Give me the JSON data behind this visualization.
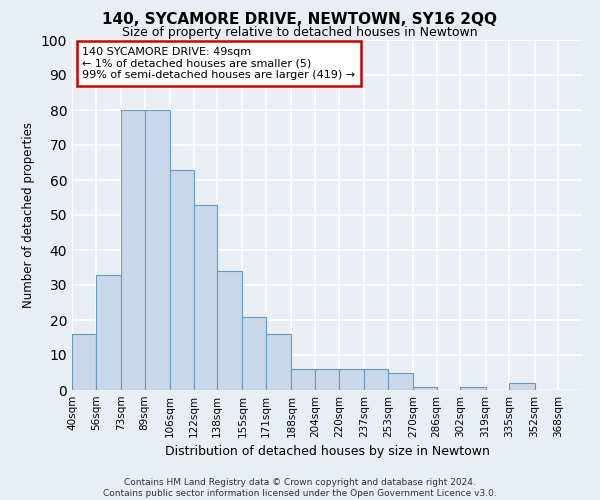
{
  "title": "140, SYCAMORE DRIVE, NEWTOWN, SY16 2QQ",
  "subtitle": "Size of property relative to detached houses in Newtown",
  "xlabel": "Distribution of detached houses by size in Newtown",
  "ylabel": "Number of detached properties",
  "bin_labels": [
    "40sqm",
    "56sqm",
    "73sqm",
    "89sqm",
    "106sqm",
    "122sqm",
    "138sqm",
    "155sqm",
    "171sqm",
    "188sqm",
    "204sqm",
    "220sqm",
    "237sqm",
    "253sqm",
    "270sqm",
    "286sqm",
    "302sqm",
    "319sqm",
    "335sqm",
    "352sqm",
    "368sqm"
  ],
  "bin_edges": [
    40,
    56,
    73,
    89,
    106,
    122,
    138,
    155,
    171,
    188,
    204,
    220,
    237,
    253,
    270,
    286,
    302,
    319,
    335,
    352,
    368,
    384
  ],
  "bar_heights": [
    16,
    33,
    80,
    80,
    63,
    53,
    34,
    21,
    16,
    6,
    6,
    6,
    6,
    5,
    1,
    0,
    1,
    0,
    2,
    0,
    0
  ],
  "bar_color": "#c8d8ea",
  "bar_edge_color": "#6699bb",
  "annotation_text": "140 SYCAMORE DRIVE: 49sqm\n← 1% of detached houses are smaller (5)\n99% of semi-detached houses are larger (419) →",
  "annotation_box_color": "#ffffff",
  "annotation_box_edge_color": "#cc0000",
  "ylim": [
    0,
    100
  ],
  "yticks": [
    0,
    10,
    20,
    30,
    40,
    50,
    60,
    70,
    80,
    90,
    100
  ],
  "footer_line1": "Contains HM Land Registry data © Crown copyright and database right 2024.",
  "footer_line2": "Contains public sector information licensed under the Open Government Licence v3.0.",
  "bg_color": "#e8eef4",
  "grid_color": "#ffffff"
}
